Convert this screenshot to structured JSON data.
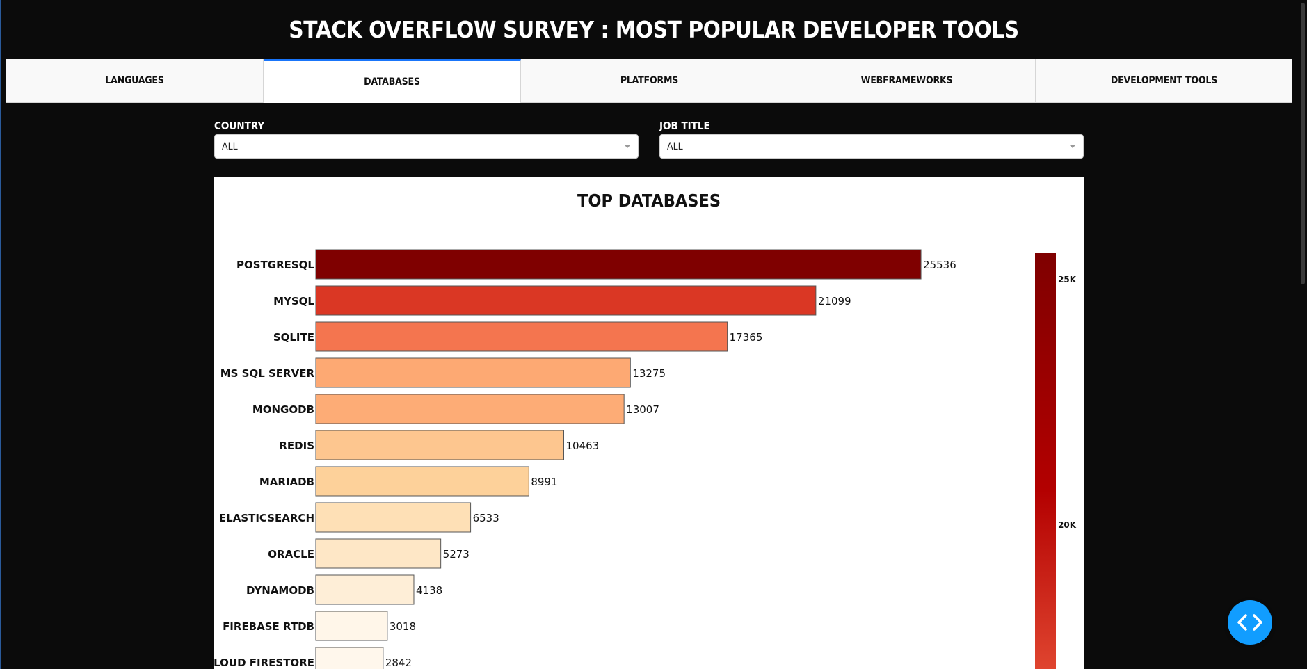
{
  "header": {
    "title": "STACK OVERFLOW SURVEY : MOST POPULAR DEVELOPER TOOLS"
  },
  "tabs": [
    {
      "label": "LANGUAGES",
      "active": false
    },
    {
      "label": "DATABASES",
      "active": true
    },
    {
      "label": "PLATFORMS",
      "active": false
    },
    {
      "label": "WEBFRAMEWORKS",
      "active": false
    },
    {
      "label": "DEVELOPMENT TOOLS",
      "active": false
    }
  ],
  "filters": {
    "country": {
      "label": "COUNTRY",
      "value": "ALL"
    },
    "job_title": {
      "label": "JOB TITLE",
      "value": "ALL"
    }
  },
  "colors": {
    "accent": "#1975fa",
    "fab": "#119dff",
    "background": "#0b0b0b"
  },
  "fab": {
    "icon": "code-icon"
  },
  "chart_data": {
    "type": "bar",
    "orientation": "horizontal",
    "title": "TOP DATABASES",
    "categories": [
      "POSTGRESQL",
      "MYSQL",
      "SQLITE",
      "MS SQL SERVER",
      "MONGODB",
      "REDIS",
      "MARIADB",
      "ELASTICSEARCH",
      "ORACLE",
      "DYNAMODB",
      "FIREBASE RTDB",
      "CLOUD FIRESTORE"
    ],
    "values": [
      25536,
      21099,
      17365,
      13275,
      13007,
      10463,
      8991,
      6533,
      5273,
      4138,
      3018,
      2842
    ],
    "colorscale": "OrRd",
    "colorbar_ticks": [
      "25K",
      "20K"
    ],
    "show_data_labels": true
  }
}
